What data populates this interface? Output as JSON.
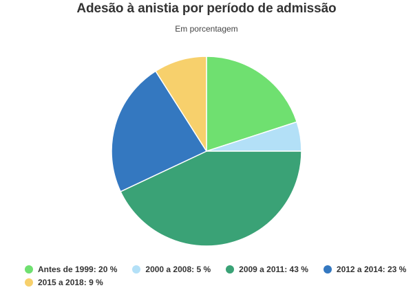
{
  "chart_data": {
    "type": "pie",
    "title": "Adesão à anistia por período de admissão",
    "subtitle": "Em porcentagem",
    "slices": [
      {
        "label": "Antes de 1999",
        "value": 20,
        "legend": "Antes de 1999: 20 %",
        "color": "#6fe070"
      },
      {
        "label": "2000 a 2008",
        "value": 5,
        "legend": "2000 a 2008: 5 %",
        "color": "#b3e0f7"
      },
      {
        "label": "2009 a 2011",
        "value": 43,
        "legend": "2009 a 2011: 43 %",
        "color": "#3aa276"
      },
      {
        "label": "2012 a 2014",
        "value": 23,
        "legend": "2012 a 2014: 23 %",
        "color": "#3478c0"
      },
      {
        "label": "2015 a 2018",
        "value": 9,
        "legend": "2015 a 2018: 9 %",
        "color": "#f7d06c"
      }
    ],
    "legend_position": "bottom-left"
  }
}
